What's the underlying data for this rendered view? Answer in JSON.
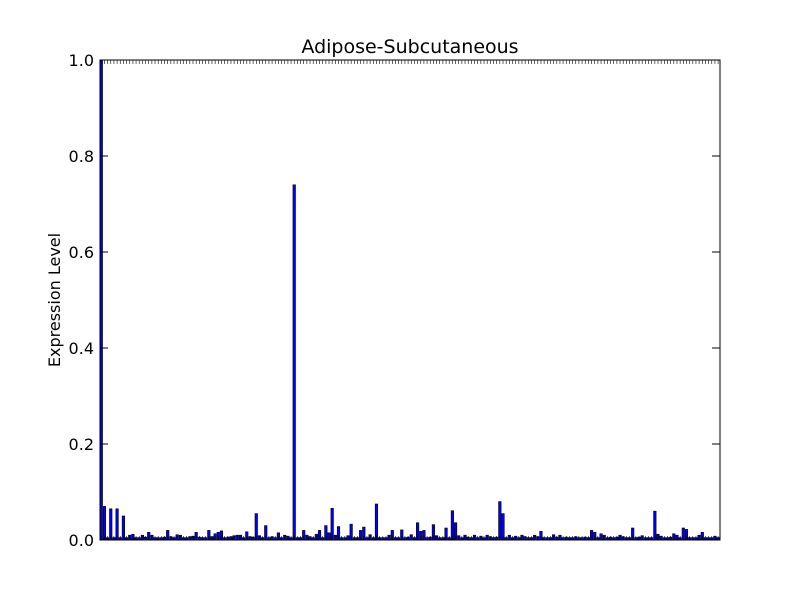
{
  "chart_data": {
    "type": "bar",
    "title": "Adipose-Subcutaneous",
    "xlabel": "",
    "ylabel": "Expression Level",
    "ylim": [
      0,
      1.0
    ],
    "yticks": [
      "0.0",
      "0.2",
      "0.4",
      "0.6",
      "0.8",
      "1.0"
    ],
    "ytick_values": [
      0,
      0.2,
      0.4,
      0.6,
      0.8,
      1.0
    ],
    "bar_color": "#0000ff",
    "edge_color": "#000000",
    "grid": false,
    "values": [
      1.0,
      0.07,
      0.005,
      0.065,
      0.005,
      0.065,
      0.005,
      0.05,
      0.005,
      0.01,
      0.012,
      0.005,
      0.005,
      0.01,
      0.006,
      0.016,
      0.01,
      0.005,
      0.005,
      0.005,
      0.006,
      0.02,
      0.007,
      0.005,
      0.011,
      0.01,
      0.005,
      0.005,
      0.007,
      0.008,
      0.016,
      0.006,
      0.005,
      0.005,
      0.02,
      0.007,
      0.013,
      0.016,
      0.019,
      0.005,
      0.006,
      0.007,
      0.009,
      0.01,
      0.01,
      0.005,
      0.017,
      0.007,
      0.006,
      0.055,
      0.009,
      0.005,
      0.03,
      0.005,
      0.007,
      0.005,
      0.015,
      0.005,
      0.01,
      0.008,
      0.005,
      0.74,
      0.005,
      0.005,
      0.02,
      0.01,
      0.007,
      0.005,
      0.012,
      0.02,
      0.005,
      0.03,
      0.015,
      0.066,
      0.01,
      0.028,
      0.005,
      0.005,
      0.009,
      0.033,
      0.005,
      0.005,
      0.02,
      0.027,
      0.005,
      0.011,
      0.005,
      0.075,
      0.005,
      0.005,
      0.005,
      0.01,
      0.02,
      0.005,
      0.005,
      0.021,
      0.005,
      0.006,
      0.011,
      0.005,
      0.036,
      0.018,
      0.02,
      0.005,
      0.006,
      0.032,
      0.009,
      0.005,
      0.005,
      0.025,
      0.005,
      0.061,
      0.036,
      0.009,
      0.005,
      0.01,
      0.006,
      0.005,
      0.01,
      0.005,
      0.008,
      0.005,
      0.01,
      0.007,
      0.005,
      0.006,
      0.08,
      0.055,
      0.005,
      0.01,
      0.005,
      0.008,
      0.005,
      0.01,
      0.007,
      0.005,
      0.005,
      0.01,
      0.007,
      0.018,
      0.005,
      0.005,
      0.005,
      0.011,
      0.006,
      0.01,
      0.005,
      0.006,
      0.005,
      0.005,
      0.007,
      0.005,
      0.005,
      0.006,
      0.005,
      0.02,
      0.016,
      0.005,
      0.013,
      0.01,
      0.005,
      0.006,
      0.005,
      0.006,
      0.01,
      0.007,
      0.005,
      0.005,
      0.025,
      0.005,
      0.006,
      0.009,
      0.005,
      0.005,
      0.005,
      0.06,
      0.012,
      0.008,
      0.005,
      0.005,
      0.006,
      0.013,
      0.01,
      0.005,
      0.025,
      0.022,
      0.005,
      0.005,
      0.005,
      0.01,
      0.016,
      0.005,
      0.005,
      0.005,
      0.008,
      0.005
    ]
  }
}
